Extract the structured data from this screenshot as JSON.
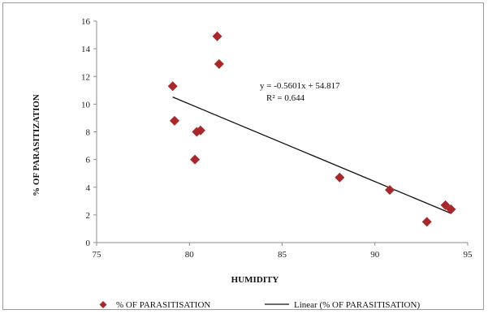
{
  "chart_data": {
    "type": "scatter",
    "xlabel": "HUMIDITY",
    "ylabel": "% OF PARASITIZATION",
    "xlim": [
      75,
      95
    ],
    "ylim": [
      0,
      16
    ],
    "xticks": [
      "75",
      "80",
      "85",
      "90",
      "95"
    ],
    "yticks": [
      "0",
      "2",
      "4",
      "6",
      "8",
      "10",
      "12",
      "14",
      "16"
    ],
    "grid": false,
    "legend_position": "bottom",
    "series": [
      {
        "name": "% OF PARASITISATION",
        "marker": "diamond",
        "color": "#a8292c",
        "x": [
          79.1,
          79.2,
          80.3,
          80.4,
          80.6,
          81.5,
          81.6,
          88.1,
          90.8,
          92.8,
          93.8,
          94.1
        ],
        "y": [
          11.3,
          8.8,
          6.0,
          8.0,
          8.1,
          14.9,
          12.9,
          4.7,
          3.8,
          1.5,
          2.7,
          2.4
        ]
      }
    ],
    "trendline": {
      "name": "Linear (% OF PARASITISATION)",
      "slope": -0.5601,
      "intercept": 54.817,
      "x_range": [
        79.1,
        94.1
      ],
      "color": "#111111"
    },
    "annotations": [
      "y = -0.5601x + 54.817",
      "R² = 0.644"
    ]
  }
}
